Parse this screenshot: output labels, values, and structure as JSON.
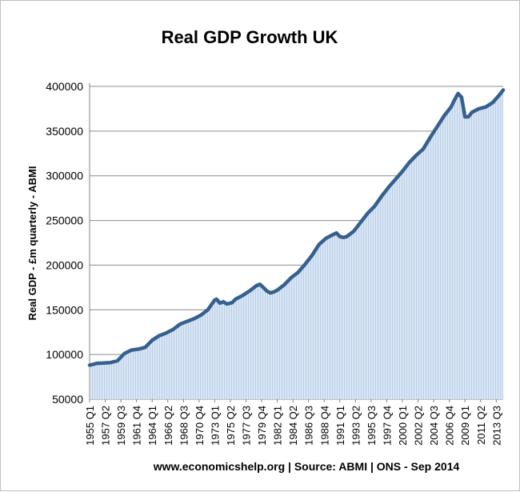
{
  "chart_data": {
    "type": "area",
    "title": "Real GDP Growth UK",
    "xlabel": "",
    "ylabel": "Real GDP - £m quarterly  - ABMI",
    "source_note": "www.economicshelp.org | Source:  ABMI | ONS - Sep 2014",
    "ylim": [
      50000,
      400000
    ],
    "yticks": [
      50000,
      100000,
      150000,
      200000,
      250000,
      300000,
      350000,
      400000
    ],
    "ytick_labels": [
      "50000",
      "100000",
      "150000",
      "200000",
      "250000",
      "300000",
      "350000",
      "400000"
    ],
    "x_tick_labels": [
      "1955 Q1",
      "1957 Q2",
      "1959 Q3",
      "1961 Q4",
      "1964 Q1",
      "1966 Q2",
      "1968 Q3",
      "1970 Q4",
      "1973 Q1",
      "1975 Q2",
      "1977 Q3",
      "1979 Q4",
      "1982 Q1",
      "1984 Q2",
      "1986 Q3",
      "1988 Q4",
      "1991 Q1",
      "1993 Q2",
      "1995 Q3",
      "1997 Q4",
      "2000 Q1",
      "2002 Q2",
      "2004 Q3",
      "2006 Q4",
      "2009 Q1",
      "2011 Q2",
      "2013 Q3"
    ],
    "grid": true,
    "legend": "none",
    "colors": {
      "line": "#35608f",
      "fill": "#dbe7f5",
      "fill_stripe": "#b8cde8",
      "grid": "#8c8c8c"
    },
    "series": [
      {
        "x": [
          1955.0,
          1956.0,
          1957.0,
          1958.0,
          1959.0,
          1960.0,
          1961.0,
          1962.0,
          1963.0,
          1964.0,
          1965.0,
          1966.0,
          1967.0,
          1968.0,
          1969.0,
          1970.0,
          1971.0,
          1972.0,
          1973.0,
          1973.25,
          1973.75,
          1974.25,
          1974.75,
          1975.5,
          1976.0,
          1977.0,
          1978.0,
          1979.0,
          1979.5,
          1980.0,
          1980.5,
          1981.0,
          1981.5,
          1982.0,
          1983.0,
          1984.0,
          1985.0,
          1986.0,
          1987.0,
          1988.0,
          1989.0,
          1990.0,
          1990.5,
          1991.0,
          1991.5,
          1992.0,
          1993.0,
          1994.0,
          1995.0,
          1996.0,
          1997.0,
          1998.0,
          1999.0,
          2000.0,
          2001.0,
          2002.0,
          2003.0,
          2004.0,
          2005.0,
          2006.0,
          2007.0,
          2007.5,
          2008.0,
          2008.5,
          2009.0,
          2009.5,
          2010.0,
          2011.0,
          2012.0,
          2013.0,
          2014.0,
          2014.5
        ],
        "values": [
          88000,
          90000,
          90500,
          91000,
          93000,
          101000,
          105000,
          106000,
          108000,
          116000,
          121000,
          124000,
          128000,
          134000,
          137000,
          140000,
          144000,
          150000,
          161000,
          162000,
          157500,
          159000,
          156500,
          158000,
          162000,
          166000,
          171000,
          177000,
          178500,
          175000,
          171000,
          169000,
          170000,
          172000,
          178000,
          186000,
          192000,
          201000,
          211000,
          223000,
          230000,
          234000,
          236000,
          232000,
          231000,
          232000,
          238000,
          248000,
          258000,
          266000,
          277000,
          287000,
          296000,
          305000,
          315000,
          323000,
          330000,
          343000,
          355000,
          367000,
          377000,
          385000,
          392000,
          388000,
          366000,
          366000,
          371000,
          375000,
          377000,
          382000,
          391000,
          396000
        ]
      }
    ]
  }
}
